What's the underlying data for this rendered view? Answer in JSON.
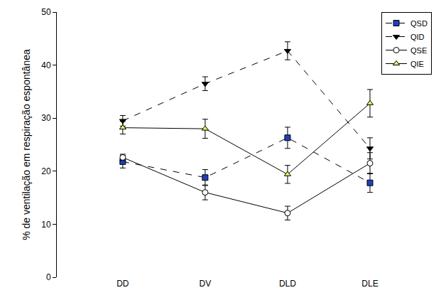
{
  "chart_data": {
    "type": "line",
    "y_label": "% de ventilação em respiração espontânea",
    "categories": [
      "DD",
      "DV",
      "DLD",
      "DLE"
    ],
    "ylim": [
      0,
      50
    ],
    "yticks": [
      0,
      10,
      20,
      30,
      40,
      50
    ],
    "grid": false,
    "legend": "upper right",
    "series": [
      {
        "name": "QSD",
        "color": "#1f3fbf",
        "marker": "square",
        "line_style": "dash",
        "values": [
          21.8,
          18.8,
          26.3,
          17.8
        ],
        "errors": [
          1.2,
          1.5,
          2.0,
          1.8
        ]
      },
      {
        "name": "QID",
        "color": "#000000",
        "marker": "triangle-down",
        "line_style": "dash",
        "values": [
          29.5,
          36.5,
          42.7,
          24.3
        ],
        "errors": [
          1.0,
          1.3,
          1.7,
          2.0
        ]
      },
      {
        "name": "QSE",
        "color": "#ffffff",
        "marker": "circle",
        "line_style": "solid",
        "values": [
          22.6,
          16.0,
          12.1,
          21.5
        ],
        "errors": [
          0.6,
          1.4,
          1.3,
          2.0
        ]
      },
      {
        "name": "QIE",
        "color": "#f0f060",
        "marker": "triangle-up",
        "line_style": "solid",
        "values": [
          28.2,
          28.0,
          19.4,
          32.8
        ],
        "errors": [
          1.2,
          1.8,
          1.7,
          2.6
        ]
      }
    ]
  }
}
